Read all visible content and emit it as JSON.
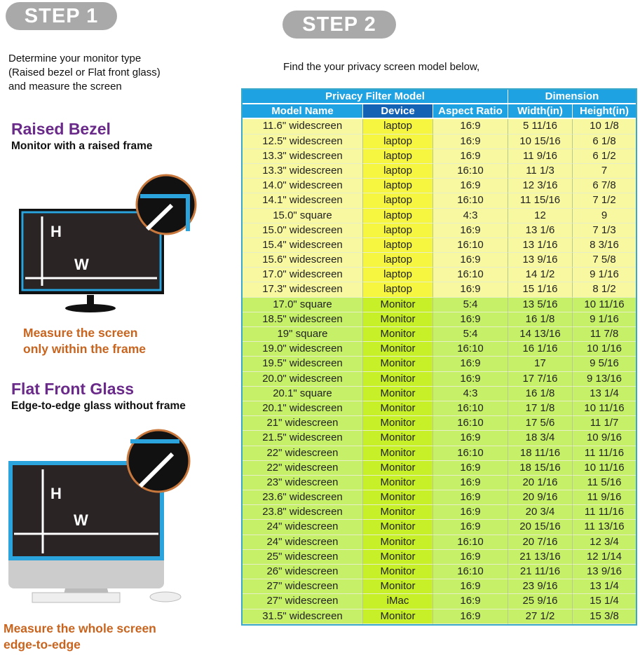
{
  "step1": {
    "label": "STEP 1",
    "instructions": [
      "Determine your monitor type",
      "(Raised bezel or Flat front glass)",
      "and measure the screen"
    ],
    "raised": {
      "title": "Raised Bezel",
      "subtitle": "Monitor with a raised frame",
      "note": [
        "Measure the screen",
        "only within the frame"
      ]
    },
    "flat": {
      "title": "Flat Front Glass",
      "subtitle": "Edge-to-edge glass without frame",
      "note": [
        "Measure the whole screen",
        "edge-to-edge"
      ]
    },
    "labels": {
      "h": "H",
      "w": "W"
    }
  },
  "step2": {
    "label": "STEP 2",
    "instruction": "Find the your privacy screen model below,"
  },
  "table": {
    "group_headers": [
      "Privacy Filter Model",
      "Dimension"
    ],
    "columns": [
      "Model Name",
      "Device",
      "Aspect Ratio",
      "Width(in)",
      "Height(in)"
    ],
    "colors": {
      "header": "#1ea2e2",
      "laptop_row": "#f8f8a0",
      "monitor_row": "#c6f068"
    },
    "rows": [
      [
        "11.6\" widescreen",
        "laptop",
        "16:9",
        "5 11/16",
        "10 1/8"
      ],
      [
        "12.5\" widescreen",
        "laptop",
        "16:9",
        "10 15/16",
        "6 1/8"
      ],
      [
        "13.3\" widescreen",
        "laptop",
        "16:9",
        "11 9/16",
        "6 1/2"
      ],
      [
        "13.3\" widescreen",
        "laptop",
        "16:10",
        "11 1/3",
        "7"
      ],
      [
        "14.0\" widescreen",
        "laptop",
        "16:9",
        "12 3/16",
        "6 7/8"
      ],
      [
        "14.1\" widescreen",
        "laptop",
        "16:10",
        "11 15/16",
        "7 1/2"
      ],
      [
        "15.0\" square",
        "laptop",
        "4:3",
        "12",
        "9"
      ],
      [
        "15.0\" widescreen",
        "laptop",
        "16:9",
        "13 1/6",
        "7 1/3"
      ],
      [
        "15.4\" widescreen",
        "laptop",
        "16:10",
        "13 1/16",
        "8 3/16"
      ],
      [
        "15.6\" widescreen",
        "laptop",
        "16:9",
        "13 9/16",
        "7 5/8"
      ],
      [
        "17.0\" widescreen",
        "laptop",
        "16:10",
        "14 1/2",
        "9 1/16"
      ],
      [
        "17.3\" widescreen",
        "laptop",
        "16:9",
        "15 1/16",
        "8 1/2"
      ],
      [
        "17.0\" square",
        "Monitor",
        "5:4",
        "13 5/16",
        "10 11/16"
      ],
      [
        "18.5\" widescreen",
        "Monitor",
        "16:9",
        "16 1/8",
        "9 1/16"
      ],
      [
        "19\" square",
        "Monitor",
        "5:4",
        "14 13/16",
        "11 7/8"
      ],
      [
        "19.0\" widescreen",
        "Monitor",
        "16:10",
        "16 1/16",
        "10 1/16"
      ],
      [
        "19.5\" widescreen",
        "Monitor",
        "16:9",
        "17",
        "9 5/16"
      ],
      [
        "20.0\" widescreen",
        "Monitor",
        "16:9",
        "17 7/16",
        "9 13/16"
      ],
      [
        "20.1\" square",
        "Monitor",
        "4:3",
        "16 1/8",
        "13 1/4"
      ],
      [
        "20.1\" widescreen",
        "Monitor",
        "16:10",
        "17 1/8",
        "10 11/16"
      ],
      [
        "21\" widescreen",
        "Monitor",
        "16:10",
        "17 5/6",
        "11 1/7"
      ],
      [
        "21.5\" widescreen",
        "Monitor",
        "16:9",
        "18 3/4",
        "10 9/16"
      ],
      [
        "22\" widescreen",
        "Monitor",
        "16:10",
        "18 11/16",
        "11 11/16"
      ],
      [
        "22\" widescreen",
        "Monitor",
        "16:9",
        "18 15/16",
        "10 11/16"
      ],
      [
        "23\" widescreen",
        "Monitor",
        "16:9",
        "20 1/16",
        "11 5/16"
      ],
      [
        "23.6\" widescreen",
        "Monitor",
        "16:9",
        "20 9/16",
        "11 9/16"
      ],
      [
        "23.8\" widescreen",
        "Monitor",
        "16:9",
        "20 3/4",
        "11 11/16"
      ],
      [
        "24\" widescreen",
        "Monitor",
        "16:9",
        "20 15/16",
        "11 13/16"
      ],
      [
        "24\" widescreen",
        "Monitor",
        "16:10",
        "20 7/16",
        "12 3/4"
      ],
      [
        "25\" widescreen",
        "Monitor",
        "16:9",
        "21 13/16",
        "12 1/14"
      ],
      [
        "26\" widescreen",
        "Monitor",
        "16:10",
        "21 11/16",
        "13 9/16"
      ],
      [
        "27\" widescreen",
        "Monitor",
        "16:9",
        "23 9/16",
        "13 1/4"
      ],
      [
        "27\" widescreen",
        "iMac",
        "16:9",
        "25 9/16",
        "15 1/4"
      ],
      [
        "31.5\" widescreen",
        "Monitor",
        "16:9",
        "27 1/2",
        "15 3/8"
      ]
    ]
  }
}
